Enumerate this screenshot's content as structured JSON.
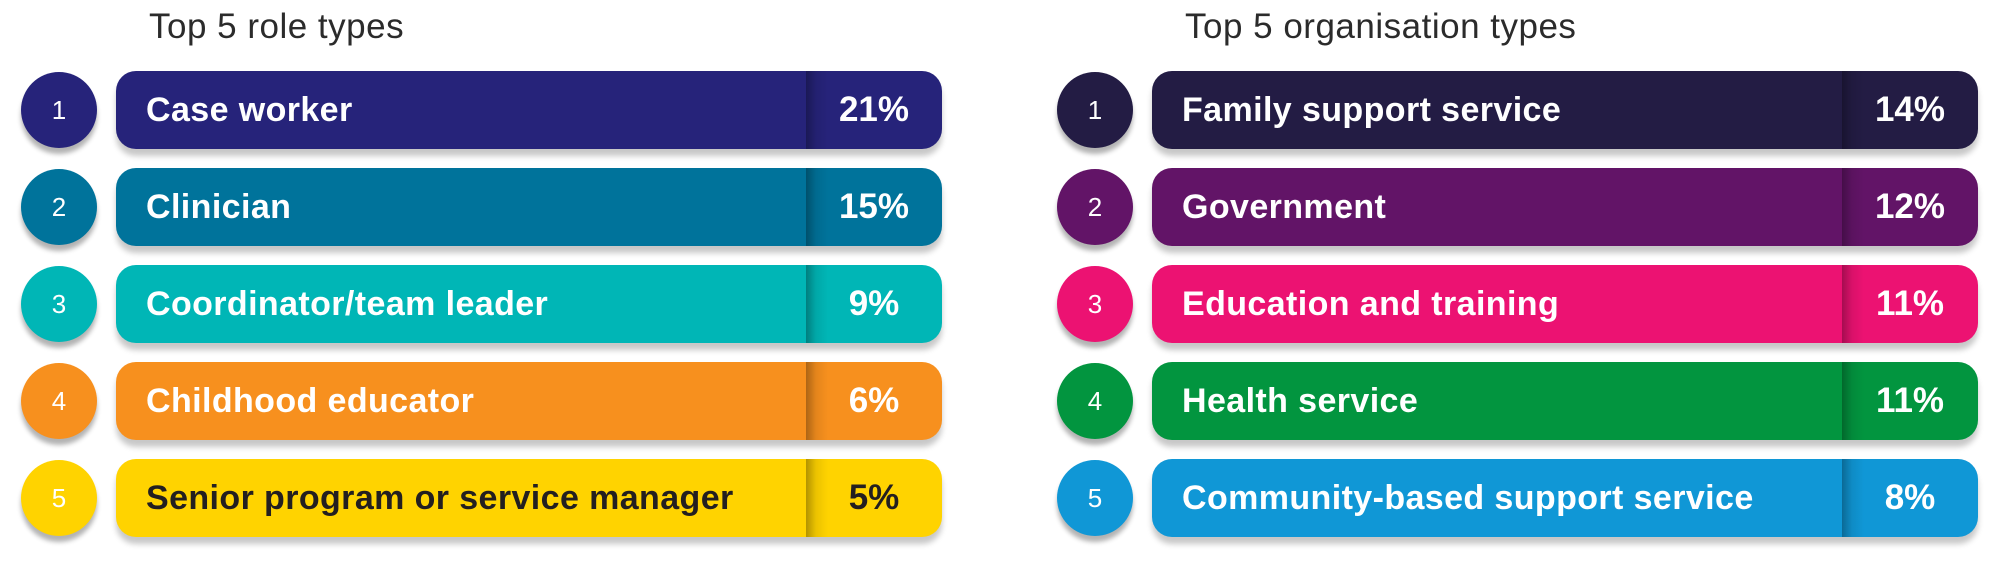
{
  "chart_data": [
    {
      "type": "bar",
      "title": "Top 5 role types",
      "categories": [
        "Case worker",
        "Clinician",
        "Coordinator/team leader",
        "Childhood educator",
        "Senior program or service manager"
      ],
      "values": [
        21,
        15,
        9,
        6,
        5
      ],
      "value_labels": [
        "21%",
        "15%",
        "9%",
        "6%",
        "5%"
      ],
      "ranks": [
        "1",
        "2",
        "3",
        "4",
        "5"
      ],
      "unit": "%",
      "colors": [
        "#26237a",
        "#00739b",
        "#00b6b6",
        "#f7901e",
        "#ffd300"
      ],
      "text_colors": [
        "#ffffff",
        "#ffffff",
        "#ffffff",
        "#ffffff",
        "#231f20"
      ]
    },
    {
      "type": "bar",
      "title": "Top 5 organisation types",
      "categories": [
        "Family support service",
        "Government",
        "Education and training",
        "Health service",
        "Community-based support service"
      ],
      "values": [
        14,
        12,
        11,
        11,
        8
      ],
      "value_labels": [
        "14%",
        "12%",
        "11%",
        "11%",
        "8%"
      ],
      "ranks": [
        "1",
        "2",
        "3",
        "4",
        "5"
      ],
      "unit": "%",
      "colors": [
        "#231c44",
        "#621467",
        "#ec1272",
        "#02953f",
        "#1097d6"
      ],
      "text_colors": [
        "#ffffff",
        "#ffffff",
        "#ffffff",
        "#ffffff",
        "#ffffff"
      ]
    }
  ]
}
